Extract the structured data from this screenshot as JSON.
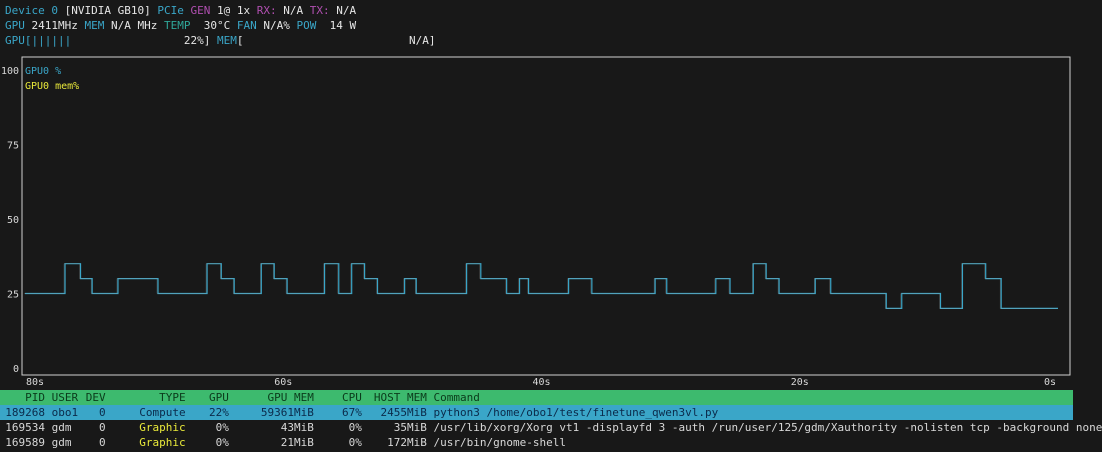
{
  "device": {
    "label": "Device 0",
    "name": "[NVIDIA GB10]",
    "pcie_label": "PCIe",
    "gen_label": "GEN",
    "gen_value": "1@ 1x",
    "rx_label": "RX:",
    "rx_value": "N/A",
    "tx_label": "TX:",
    "tx_value": "N/A"
  },
  "stats": {
    "gpu_label": "GPU",
    "gpu_clock": "2411MHz",
    "mem_label": "MEM",
    "mem_clock": "N/A MHz",
    "temp_label": "TEMP",
    "temp_value": "30°C",
    "fan_label": "FAN",
    "fan_value": "N/A%",
    "pow_label": "POW",
    "pow_value": "14 W"
  },
  "bars": {
    "gpu_label": "GPU",
    "gpu_bar": "[||||||                 ",
    "gpu_value": "22%]",
    "mem_label": "MEM",
    "mem_bar": "[                         ",
    "mem_value": "N/A]",
    "gpu_util_percent": 22
  },
  "chart_data": {
    "type": "line",
    "legend": [
      {
        "name": "GPU0 %",
        "color": "#3aa6c8"
      },
      {
        "name": "GPU0 mem%",
        "color": "#e8e83a"
      }
    ],
    "y_ticks": [
      "100",
      "75",
      "50",
      "25",
      "0"
    ],
    "x_ticks": [
      "80s",
      "60s",
      "40s",
      "20s",
      "0s"
    ],
    "ylim": [
      0,
      100
    ],
    "xlim": [
      80,
      0
    ],
    "series": [
      {
        "name": "GPU0 %",
        "step_points": [
          [
            80,
            25
          ],
          [
            76.9,
            35
          ],
          [
            75.7,
            30
          ],
          [
            74.8,
            25
          ],
          [
            72.8,
            30
          ],
          [
            69.7,
            25
          ],
          [
            65.9,
            35
          ],
          [
            64.8,
            30
          ],
          [
            63.8,
            25
          ],
          [
            61.7,
            35
          ],
          [
            60.7,
            30
          ],
          [
            59.7,
            25
          ],
          [
            56.8,
            35
          ],
          [
            55.7,
            25
          ],
          [
            54.7,
            35
          ],
          [
            53.7,
            30
          ],
          [
            52.7,
            25
          ],
          [
            50.6,
            30
          ],
          [
            49.7,
            25
          ],
          [
            45.8,
            35
          ],
          [
            44.7,
            30
          ],
          [
            42.7,
            25
          ],
          [
            41.7,
            30
          ],
          [
            41,
            25
          ],
          [
            37.9,
            30
          ],
          [
            36.1,
            25
          ],
          [
            31.2,
            30
          ],
          [
            30.3,
            25
          ],
          [
            26.5,
            30
          ],
          [
            25.4,
            25
          ],
          [
            23.6,
            35
          ],
          [
            22.6,
            30
          ],
          [
            21.6,
            25
          ],
          [
            18.8,
            30
          ],
          [
            17.6,
            25
          ],
          [
            13.3,
            20
          ],
          [
            12.1,
            25
          ],
          [
            9.1,
            20
          ],
          [
            7.4,
            35
          ],
          [
            5.6,
            30
          ],
          [
            4.4,
            20
          ],
          [
            0,
            20
          ]
        ]
      }
    ]
  },
  "table": {
    "headers": [
      "PID",
      "USER",
      "DEV",
      "TYPE",
      "GPU",
      "GPU MEM",
      "CPU",
      "HOST MEM",
      "Command"
    ],
    "rows": [
      {
        "pid": "189268",
        "user": "obo1",
        "dev": "0",
        "type": "Compute",
        "gpu": "22%",
        "gpu_mem": "59361MiB",
        "cpu": "67%",
        "host_mem": "2455MiB",
        "command": "python3 /home/obo1/test/finetune_qwen3vl.py",
        "selected": true
      },
      {
        "pid": "169534",
        "user": "gdm",
        "dev": "0",
        "type": "Graphic",
        "gpu": "0%",
        "gpu_mem": "43MiB",
        "cpu": "0%",
        "host_mem": "35MiB",
        "command": "/usr/lib/xorg/Xorg vt1 -displayfd 3 -auth /run/user/125/gdm/Xauthority -nolisten tcp -background none"
      },
      {
        "pid": "169589",
        "user": "gdm",
        "dev": "0",
        "type": "Graphic",
        "gpu": "0%",
        "gpu_mem": "21MiB",
        "cpu": "0%",
        "host_mem": "172MiB",
        "command": "/usr/bin/gnome-shell"
      }
    ]
  }
}
